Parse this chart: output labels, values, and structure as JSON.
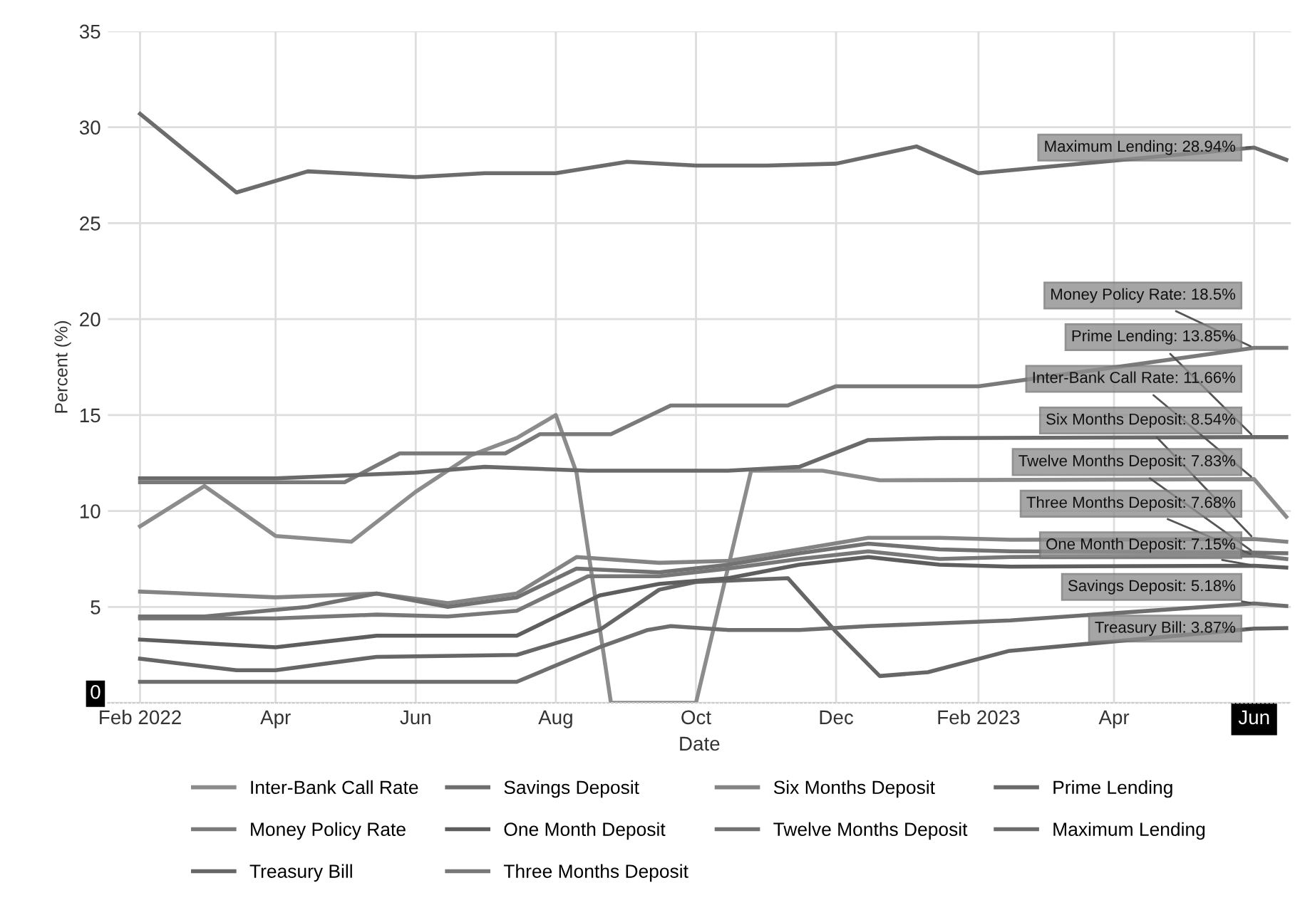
{
  "chart_data": {
    "type": "line",
    "xlabel": "Date",
    "ylabel": "Percent (%)",
    "xlim": [
      "2022-01-18",
      "2023-06-17"
    ],
    "xticks": [
      {
        "value": "2022-02-01",
        "label": "Feb 2022"
      },
      {
        "value": "2022-04-01",
        "label": "Apr"
      },
      {
        "value": "2022-06-01",
        "label": "Jun"
      },
      {
        "value": "2022-08-01",
        "label": "Aug"
      },
      {
        "value": "2022-10-01",
        "label": "Oct"
      },
      {
        "value": "2022-12-01",
        "label": "Dec"
      },
      {
        "value": "2023-02-01",
        "label": "Feb 2023"
      },
      {
        "value": "2023-04-01",
        "label": "Apr"
      },
      {
        "value": "2023-06-01",
        "label": "Jun"
      }
    ],
    "ylim": [
      0,
      35
    ],
    "yticks": [
      0,
      5,
      10,
      15,
      20,
      25,
      30,
      35
    ],
    "grid": true,
    "legend": "bottom",
    "marker": "none",
    "line_style": "solid",
    "series": [
      {
        "name": "Inter-Bank Call Rate",
        "color": "#8c8c8c",
        "x": [
          "2022-02-01",
          "2022-03-01",
          "2022-04-01",
          "2022-05-04",
          "2022-06-01",
          "2022-06-25",
          "2022-07-15",
          "2022-08-01",
          "2022-08-10",
          "2022-08-25",
          "2022-10-01",
          "2022-10-25",
          "2022-11-25",
          "2022-12-20",
          "2023-06-01",
          "2023-06-15"
        ],
        "values": [
          9.2,
          11.3,
          8.7,
          8.4,
          11.0,
          12.9,
          13.8,
          15.0,
          12.0,
          0,
          0,
          12.1,
          12.1,
          11.6,
          11.66,
          9.7
        ]
      },
      {
        "name": "Money Policy Rate",
        "color": "#7a7a7a",
        "x": [
          "2022-02-01",
          "2022-05-01",
          "2022-05-25",
          "2022-07-10",
          "2022-07-25",
          "2022-08-25",
          "2022-09-20",
          "2022-11-10",
          "2022-12-01",
          "2023-02-01",
          "2023-06-01",
          "2023-06-15"
        ],
        "values": [
          11.5,
          11.5,
          13.0,
          13.0,
          14.0,
          14.0,
          15.5,
          15.5,
          16.5,
          16.5,
          18.5,
          18.5
        ]
      },
      {
        "name": "Treasury Bill",
        "color": "#666666",
        "x": [
          "2022-02-01",
          "2022-03-15",
          "2022-04-01",
          "2022-05-15",
          "2022-07-15",
          "2022-08-20",
          "2022-09-15",
          "2022-10-01",
          "2022-11-10",
          "2022-12-01",
          "2022-12-20",
          "2023-01-10",
          "2023-02-14",
          "2023-06-01",
          "2023-06-15"
        ],
        "values": [
          2.3,
          1.7,
          1.7,
          2.4,
          2.5,
          3.8,
          5.9,
          6.3,
          6.5,
          3.7,
          1.4,
          1.6,
          2.7,
          3.87,
          3.9
        ]
      },
      {
        "name": "Savings Deposit",
        "color": "#6e6e6e",
        "x": [
          "2022-02-01",
          "2022-07-15",
          "2022-08-20",
          "2022-09-10",
          "2022-09-20",
          "2022-10-15",
          "2022-11-15",
          "2022-12-15",
          "2023-02-15",
          "2023-06-01",
          "2023-06-15"
        ],
        "values": [
          1.1,
          1.1,
          2.9,
          3.8,
          4.0,
          3.8,
          3.8,
          4.0,
          4.3,
          5.18,
          5.05
        ]
      },
      {
        "name": "One Month Deposit",
        "color": "#5e5e5e",
        "x": [
          "2022-02-01",
          "2022-04-01",
          "2022-05-15",
          "2022-07-15",
          "2022-08-20",
          "2022-09-15",
          "2022-10-15",
          "2022-11-15",
          "2022-12-15",
          "2023-01-15",
          "2023-02-15",
          "2023-06-01",
          "2023-06-15"
        ],
        "values": [
          3.3,
          2.9,
          3.5,
          3.5,
          5.6,
          6.2,
          6.5,
          7.2,
          7.6,
          7.2,
          7.1,
          7.15,
          7.05
        ]
      },
      {
        "name": "Three Months Deposit",
        "color": "#787878",
        "x": [
          "2022-02-01",
          "2022-04-01",
          "2022-05-15",
          "2022-06-15",
          "2022-07-15",
          "2022-08-15",
          "2022-09-15",
          "2022-10-15",
          "2022-11-15",
          "2022-12-15",
          "2023-01-15",
          "2023-02-15",
          "2023-06-01",
          "2023-06-15"
        ],
        "values": [
          4.4,
          4.4,
          4.6,
          4.5,
          4.8,
          6.6,
          6.6,
          7.0,
          7.5,
          7.9,
          7.5,
          7.6,
          7.68,
          7.5
        ]
      },
      {
        "name": "Six Months Deposit",
        "color": "#848484",
        "x": [
          "2022-02-01",
          "2022-04-01",
          "2022-05-15",
          "2022-06-15",
          "2022-07-15",
          "2022-08-10",
          "2022-09-15",
          "2022-10-15",
          "2022-11-15",
          "2022-12-15",
          "2023-01-15",
          "2023-02-15",
          "2023-06-01",
          "2023-06-15"
        ],
        "values": [
          5.8,
          5.5,
          5.7,
          5.2,
          5.7,
          7.6,
          7.3,
          7.4,
          8.0,
          8.6,
          8.6,
          8.5,
          8.54,
          8.4
        ]
      },
      {
        "name": "Twelve Months Deposit",
        "color": "#727272",
        "x": [
          "2022-02-01",
          "2022-03-01",
          "2022-04-15",
          "2022-05-15",
          "2022-06-15",
          "2022-07-15",
          "2022-08-10",
          "2022-09-15",
          "2022-10-15",
          "2022-11-15",
          "2022-12-15",
          "2023-01-15",
          "2023-02-15",
          "2023-06-01",
          "2023-06-15"
        ],
        "values": [
          4.5,
          4.5,
          5.0,
          5.7,
          5.0,
          5.5,
          7.0,
          6.8,
          7.2,
          7.8,
          8.3,
          8.0,
          7.9,
          7.83,
          7.8
        ]
      },
      {
        "name": "Prime Lending",
        "color": "#6a6a6a",
        "x": [
          "2022-02-01",
          "2022-04-01",
          "2022-06-01",
          "2022-07-01",
          "2022-08-15",
          "2022-10-15",
          "2022-11-15",
          "2022-12-15",
          "2023-01-15",
          "2023-06-01",
          "2023-06-15"
        ],
        "values": [
          11.7,
          11.7,
          12.0,
          12.3,
          12.1,
          12.1,
          12.3,
          13.7,
          13.8,
          13.85,
          13.85
        ]
      },
      {
        "name": "Maximum Lending",
        "color": "#6c6c6c",
        "x": [
          "2022-02-01",
          "2022-03-15",
          "2022-04-15",
          "2022-06-01",
          "2022-07-01",
          "2022-08-01",
          "2022-09-01",
          "2022-10-01",
          "2022-11-01",
          "2022-12-01",
          "2023-01-05",
          "2023-02-01",
          "2023-06-01",
          "2023-06-15"
        ],
        "values": [
          30.7,
          26.6,
          27.7,
          27.4,
          27.6,
          27.6,
          28.2,
          28.0,
          28.0,
          28.1,
          29.0,
          27.6,
          28.94,
          28.3
        ]
      }
    ],
    "annotations": [
      {
        "text": "Maximum Lending: 28.94%",
        "x": "2023-06-01",
        "y": 28.94
      },
      {
        "text": "Money Policy Rate: 18.5%",
        "x": "2023-06-01",
        "y": 18.5
      },
      {
        "text": "Prime Lending: 13.85%",
        "x": "2023-06-01",
        "y": 13.85
      },
      {
        "text": "Inter-Bank Call Rate: 11.66%",
        "x": "2023-06-01",
        "y": 11.66
      },
      {
        "text": "Six Months Deposit: 8.54%",
        "x": "2023-06-01",
        "y": 8.54
      },
      {
        "text": "Twelve Months Deposit: 7.83%",
        "x": "2023-06-01",
        "y": 7.83
      },
      {
        "text": "Three Months Deposit: 7.68%",
        "x": "2023-06-01",
        "y": 7.68
      },
      {
        "text": "One Month Deposit: 7.15%",
        "x": "2023-06-01",
        "y": 7.15
      },
      {
        "text": "Savings Deposit: 5.18%",
        "x": "2023-06-01",
        "y": 5.18
      },
      {
        "text": "Treasury Bill: 3.87%",
        "x": "2023-06-01",
        "y": 3.87
      }
    ]
  }
}
